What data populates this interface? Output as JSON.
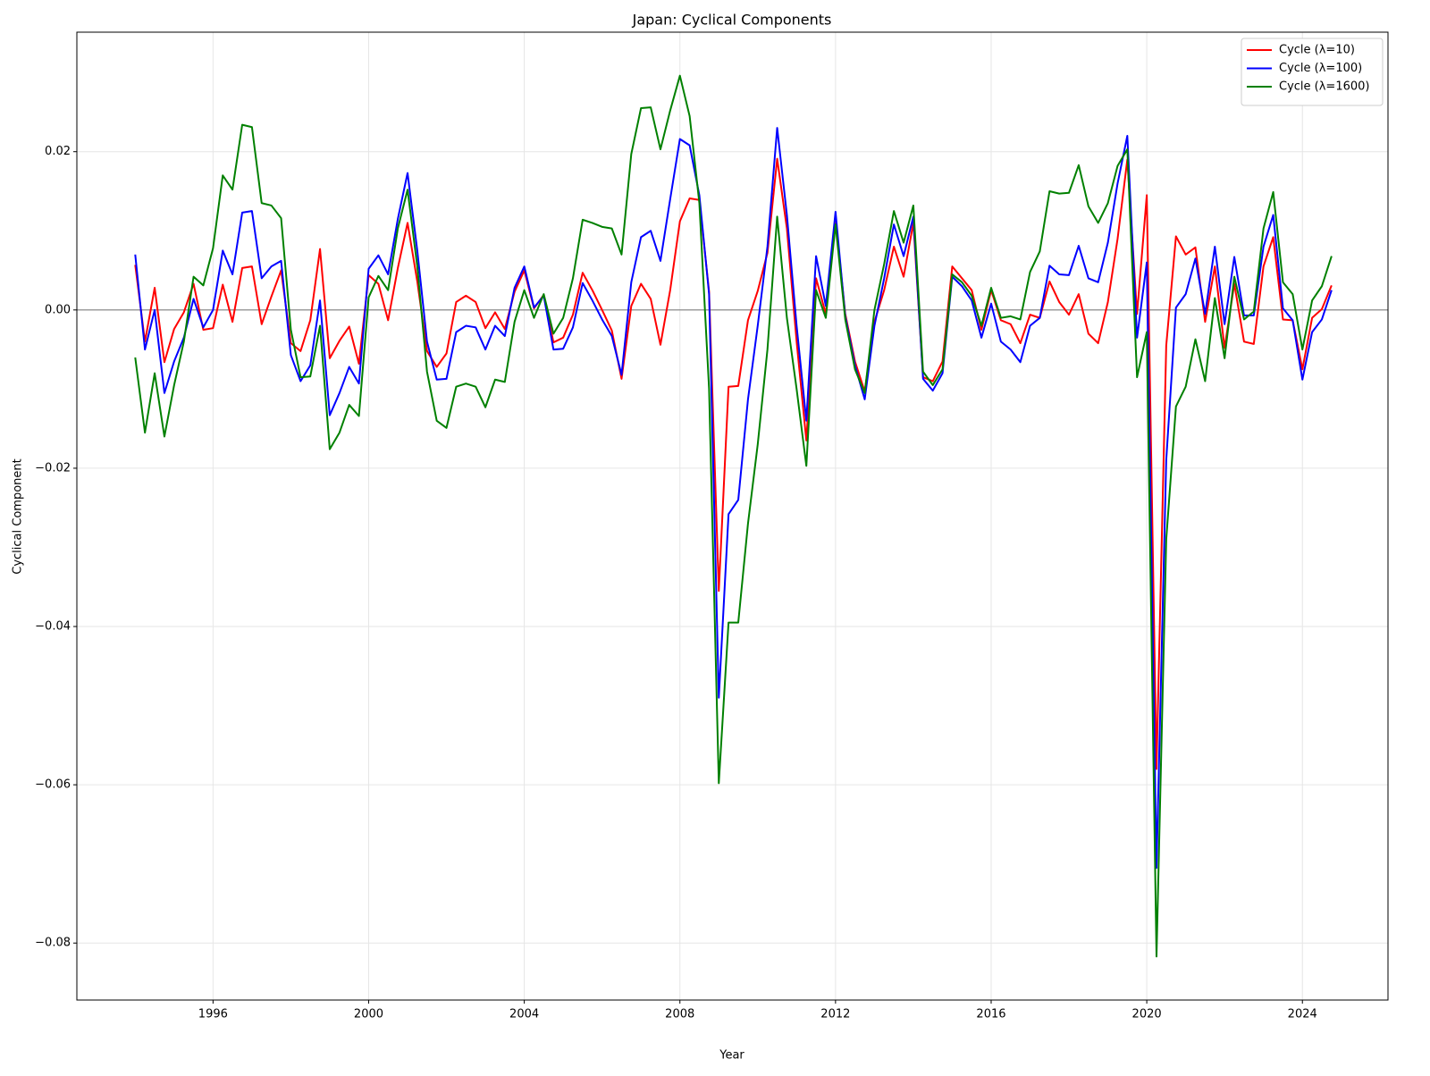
{
  "chart_data": {
    "type": "line",
    "title": "Japan: Cyclical Components",
    "x_label": "Year",
    "y_label": "Cyclical Component",
    "x": [
      1994,
      1994.25,
      1994.5,
      1994.75,
      1995,
      1995.25,
      1995.5,
      1995.75,
      1996,
      1996.25,
      1996.5,
      1996.75,
      1997,
      1997.25,
      1997.5,
      1997.75,
      1998,
      1998.25,
      1998.5,
      1998.75,
      1999,
      1999.25,
      1999.5,
      1999.75,
      2000,
      2000.25,
      2000.5,
      2000.75,
      2001,
      2001.25,
      2001.5,
      2001.75,
      2002,
      2002.25,
      2002.5,
      2002.75,
      2003,
      2003.25,
      2003.5,
      2003.75,
      2004,
      2004.25,
      2004.5,
      2004.75,
      2005,
      2005.25,
      2005.5,
      2005.75,
      2006,
      2006.25,
      2006.5,
      2006.75,
      2007,
      2007.25,
      2007.5,
      2007.75,
      2008,
      2008.25,
      2008.5,
      2008.75,
      2009,
      2009.25,
      2009.5,
      2009.75,
      2010,
      2010.25,
      2010.5,
      2010.75,
      2011,
      2011.25,
      2011.5,
      2011.75,
      2012,
      2012.25,
      2012.5,
      2012.75,
      2013,
      2013.25,
      2013.5,
      2013.75,
      2014,
      2014.25,
      2014.5,
      2014.75,
      2015,
      2015.25,
      2015.5,
      2015.75,
      2016,
      2016.25,
      2016.5,
      2016.75,
      2017,
      2017.25,
      2017.5,
      2017.75,
      2018,
      2018.25,
      2018.5,
      2018.75,
      2019,
      2019.25,
      2019.5,
      2019.75,
      2020,
      2020.25,
      2020.5,
      2020.75,
      2021,
      2021.25,
      2021.5,
      2021.75,
      2022,
      2022.25,
      2022.5,
      2022.75,
      2023,
      2023.25,
      2023.5,
      2023.75,
      2024,
      2024.25,
      2024.5,
      2024.75
    ],
    "series": [
      {
        "name": "Cycle (λ=10)",
        "color": "#ff0000",
        "values": [
          0.0057,
          -0.004,
          0.0028,
          -0.0066,
          -0.0024,
          -0.0003,
          0.0033,
          -0.0025,
          -0.0023,
          0.0032,
          -0.0015,
          0.0053,
          0.0055,
          -0.0018,
          0.0017,
          0.005,
          -0.0042,
          -0.0052,
          -0.0013,
          0.0077,
          -0.0061,
          -0.0039,
          -0.0021,
          -0.0068,
          0.0044,
          0.0033,
          -0.0013,
          0.0053,
          0.011,
          0.0036,
          -0.0052,
          -0.0072,
          -0.0055,
          0.001,
          0.0018,
          0.001,
          -0.0023,
          -0.0003,
          -0.0024,
          0.0023,
          0.005,
          0.0002,
          0.0019,
          -0.0041,
          -0.0035,
          -0.0006,
          0.0047,
          0.0025,
          0,
          -0.0026,
          -0.0087,
          0.0005,
          0.0033,
          0.0014,
          -0.0044,
          0.0025,
          0.0112,
          0.0141,
          0.0139,
          0.0023,
          -0.0355,
          -0.0097,
          -0.0096,
          -0.0013,
          0.0024,
          0.0072,
          0.0191,
          0.0103,
          -0.004,
          -0.0165,
          0.004,
          -0.0005,
          0.0115,
          -0.0005,
          -0.0065,
          -0.0103,
          -0.0015,
          0.0025,
          0.008,
          0.0042,
          0.011,
          -0.0085,
          -0.009,
          -0.0065,
          0.0055,
          0.004,
          0.0025,
          -0.0025,
          0.0025,
          -0.0013,
          -0.0018,
          -0.0042,
          -0.0006,
          -0.001,
          0.0036,
          0.001,
          -0.0006,
          0.002,
          -0.003,
          -0.0042,
          0.001,
          0.009,
          0.019,
          -0.0005,
          0.0145,
          -0.058,
          -0.0045,
          0.0093,
          0.007,
          0.0079,
          -0.0015,
          0.0055,
          -0.0048,
          0.0033,
          -0.004,
          -0.0043,
          0.0055,
          0.0092,
          -0.0012,
          -0.0013,
          -0.0075,
          -0.001,
          0.0001,
          0.0031
        ]
      },
      {
        "name": "Cycle (λ=100)",
        "color": "#0000ff",
        "values": [
          0.007,
          -0.005,
          0,
          -0.0105,
          -0.0065,
          -0.0035,
          0.0014,
          -0.0022,
          0,
          0.0075,
          0.0045,
          0.0123,
          0.0125,
          0.004,
          0.0055,
          0.0062,
          -0.0057,
          -0.009,
          -0.007,
          0.0012,
          -0.0133,
          -0.0105,
          -0.0072,
          -0.0093,
          0.0052,
          0.0069,
          0.0045,
          0.0115,
          0.0173,
          0.0075,
          -0.004,
          -0.0088,
          -0.0087,
          -0.0028,
          -0.002,
          -0.0022,
          -0.005,
          -0.002,
          -0.0033,
          0.0028,
          0.0055,
          0.0003,
          0.0018,
          -0.005,
          -0.0049,
          -0.0022,
          0.0034,
          0.0012,
          -0.0012,
          -0.0033,
          -0.0082,
          0.0035,
          0.0092,
          0.01,
          0.0062,
          0.014,
          0.0216,
          0.0208,
          0.0145,
          0.002,
          -0.049,
          -0.0258,
          -0.024,
          -0.0113,
          -0.002,
          0.008,
          0.023,
          0.012,
          -0.002,
          -0.014,
          0.0068,
          0.0005,
          0.0124,
          -0.0008,
          -0.007,
          -0.0113,
          -0.002,
          0.004,
          0.0108,
          0.0068,
          0.0118,
          -0.0087,
          -0.0102,
          -0.008,
          0.0042,
          0.003,
          0.0012,
          -0.0035,
          0.0008,
          -0.004,
          -0.005,
          -0.0066,
          -0.002,
          -0.001,
          0.0056,
          0.0045,
          0.0044,
          0.0081,
          0.004,
          0.0035,
          0.0085,
          0.016,
          0.022,
          -0.0035,
          0.006,
          -0.0705,
          -0.019,
          0.0003,
          0.002,
          0.0065,
          -0.0005,
          0.008,
          -0.0018,
          0.0067,
          -0.0007,
          -0.0007,
          0.008,
          0.012,
          0.0002,
          -0.0013,
          -0.0088,
          -0.0028,
          -0.0012,
          0.0025
        ]
      },
      {
        "name": "Cycle (λ=1600)",
        "color": "#008000",
        "values": [
          -0.006,
          -0.0155,
          -0.008,
          -0.016,
          -0.0095,
          -0.004,
          0.0042,
          0.0031,
          0.0078,
          0.017,
          0.0152,
          0.0234,
          0.0231,
          0.0135,
          0.0132,
          0.0116,
          -0.0025,
          -0.0085,
          -0.0084,
          -0.002,
          -0.0176,
          -0.0155,
          -0.012,
          -0.0134,
          0.0016,
          0.0043,
          0.0025,
          0.0103,
          0.0152,
          0.0055,
          -0.0078,
          -0.014,
          -0.0149,
          -0.0097,
          -0.0093,
          -0.0097,
          -0.0123,
          -0.0088,
          -0.0091,
          -0.0015,
          0.0025,
          -0.001,
          0.002,
          -0.003,
          -0.001,
          0.004,
          0.0114,
          0.011,
          0.0105,
          0.0103,
          0.007,
          0.0197,
          0.0255,
          0.0256,
          0.0203,
          0.0252,
          0.0296,
          0.0245,
          0.0135,
          -0.01,
          -0.0598,
          -0.0395,
          -0.0395,
          -0.027,
          -0.017,
          -0.005,
          0.0118,
          -0.001,
          -0.01,
          -0.0197,
          0.0025,
          -0.001,
          0.0108,
          -0.0012,
          -0.0075,
          -0.0105,
          0,
          0.0058,
          0.0125,
          0.0085,
          0.0132,
          -0.0078,
          -0.0095,
          -0.0075,
          0.0045,
          0.0035,
          0.0018,
          -0.002,
          0.0028,
          -0.001,
          -0.0008,
          -0.0012,
          0.0048,
          0.0074,
          0.015,
          0.0147,
          0.0148,
          0.0183,
          0.0131,
          0.011,
          0.0135,
          0.0182,
          0.0203,
          -0.0085,
          -0.0028,
          -0.0817,
          -0.029,
          -0.0122,
          -0.0097,
          -0.0037,
          -0.009,
          0.0015,
          -0.0061,
          0.0042,
          -0.0012,
          -0.0002,
          0.0103,
          0.0149,
          0.0035,
          0.002,
          -0.005,
          0.0012,
          0.003,
          0.0068
        ]
      }
    ],
    "xlim": [
      1992.5,
      2026.2
    ],
    "xticks": [
      1996,
      2000,
      2004,
      2008,
      2012,
      2016,
      2020,
      2024
    ],
    "ylim": [
      -0.0872,
      0.0351
    ],
    "yticks": [
      {
        "value": -0.08,
        "label": "−0.08"
      },
      {
        "value": -0.06,
        "label": "−0.06"
      },
      {
        "value": -0.04,
        "label": "−0.04"
      },
      {
        "value": -0.02,
        "label": "−0.02"
      },
      {
        "value": 0,
        "label": "0.00"
      },
      {
        "value": 0.02,
        "label": "0.02"
      }
    ],
    "hline": 0,
    "grid": true,
    "legend": "upper right"
  }
}
